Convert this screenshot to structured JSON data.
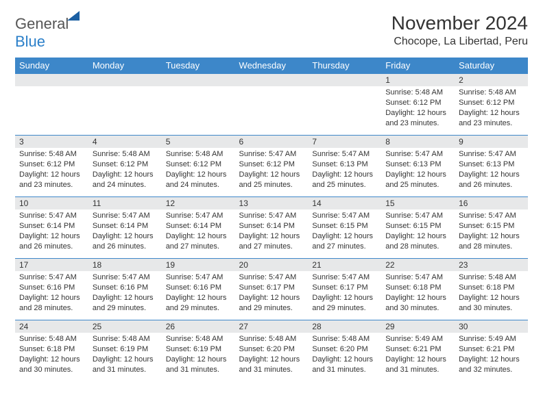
{
  "logo": {
    "general": "General",
    "blue": "Blue"
  },
  "title": "November 2024",
  "location": "Chocope, La Libertad, Peru",
  "colors": {
    "header_bg": "#3d87c9",
    "header_fg": "#ffffff",
    "daynum_bg": "#e7e8e9",
    "border": "#3d87c9",
    "text": "#333333"
  },
  "typography": {
    "title_fontsize": 28,
    "location_fontsize": 16,
    "header_fontsize": 13,
    "daynum_fontsize": 12,
    "body_fontsize": 11
  },
  "day_headers": [
    "Sunday",
    "Monday",
    "Tuesday",
    "Wednesday",
    "Thursday",
    "Friday",
    "Saturday"
  ],
  "weeks": [
    [
      {
        "num": "",
        "lines": []
      },
      {
        "num": "",
        "lines": []
      },
      {
        "num": "",
        "lines": []
      },
      {
        "num": "",
        "lines": []
      },
      {
        "num": "",
        "lines": []
      },
      {
        "num": "1",
        "lines": [
          "Sunrise: 5:48 AM",
          "Sunset: 6:12 PM",
          "Daylight: 12 hours and 23 minutes."
        ]
      },
      {
        "num": "2",
        "lines": [
          "Sunrise: 5:48 AM",
          "Sunset: 6:12 PM",
          "Daylight: 12 hours and 23 minutes."
        ]
      }
    ],
    [
      {
        "num": "3",
        "lines": [
          "Sunrise: 5:48 AM",
          "Sunset: 6:12 PM",
          "Daylight: 12 hours and 23 minutes."
        ]
      },
      {
        "num": "4",
        "lines": [
          "Sunrise: 5:48 AM",
          "Sunset: 6:12 PM",
          "Daylight: 12 hours and 24 minutes."
        ]
      },
      {
        "num": "5",
        "lines": [
          "Sunrise: 5:48 AM",
          "Sunset: 6:12 PM",
          "Daylight: 12 hours and 24 minutes."
        ]
      },
      {
        "num": "6",
        "lines": [
          "Sunrise: 5:47 AM",
          "Sunset: 6:12 PM",
          "Daylight: 12 hours and 25 minutes."
        ]
      },
      {
        "num": "7",
        "lines": [
          "Sunrise: 5:47 AM",
          "Sunset: 6:13 PM",
          "Daylight: 12 hours and 25 minutes."
        ]
      },
      {
        "num": "8",
        "lines": [
          "Sunrise: 5:47 AM",
          "Sunset: 6:13 PM",
          "Daylight: 12 hours and 25 minutes."
        ]
      },
      {
        "num": "9",
        "lines": [
          "Sunrise: 5:47 AM",
          "Sunset: 6:13 PM",
          "Daylight: 12 hours and 26 minutes."
        ]
      }
    ],
    [
      {
        "num": "10",
        "lines": [
          "Sunrise: 5:47 AM",
          "Sunset: 6:14 PM",
          "Daylight: 12 hours and 26 minutes."
        ]
      },
      {
        "num": "11",
        "lines": [
          "Sunrise: 5:47 AM",
          "Sunset: 6:14 PM",
          "Daylight: 12 hours and 26 minutes."
        ]
      },
      {
        "num": "12",
        "lines": [
          "Sunrise: 5:47 AM",
          "Sunset: 6:14 PM",
          "Daylight: 12 hours and 27 minutes."
        ]
      },
      {
        "num": "13",
        "lines": [
          "Sunrise: 5:47 AM",
          "Sunset: 6:14 PM",
          "Daylight: 12 hours and 27 minutes."
        ]
      },
      {
        "num": "14",
        "lines": [
          "Sunrise: 5:47 AM",
          "Sunset: 6:15 PM",
          "Daylight: 12 hours and 27 minutes."
        ]
      },
      {
        "num": "15",
        "lines": [
          "Sunrise: 5:47 AM",
          "Sunset: 6:15 PM",
          "Daylight: 12 hours and 28 minutes."
        ]
      },
      {
        "num": "16",
        "lines": [
          "Sunrise: 5:47 AM",
          "Sunset: 6:15 PM",
          "Daylight: 12 hours and 28 minutes."
        ]
      }
    ],
    [
      {
        "num": "17",
        "lines": [
          "Sunrise: 5:47 AM",
          "Sunset: 6:16 PM",
          "Daylight: 12 hours and 28 minutes."
        ]
      },
      {
        "num": "18",
        "lines": [
          "Sunrise: 5:47 AM",
          "Sunset: 6:16 PM",
          "Daylight: 12 hours and 29 minutes."
        ]
      },
      {
        "num": "19",
        "lines": [
          "Sunrise: 5:47 AM",
          "Sunset: 6:16 PM",
          "Daylight: 12 hours and 29 minutes."
        ]
      },
      {
        "num": "20",
        "lines": [
          "Sunrise: 5:47 AM",
          "Sunset: 6:17 PM",
          "Daylight: 12 hours and 29 minutes."
        ]
      },
      {
        "num": "21",
        "lines": [
          "Sunrise: 5:47 AM",
          "Sunset: 6:17 PM",
          "Daylight: 12 hours and 29 minutes."
        ]
      },
      {
        "num": "22",
        "lines": [
          "Sunrise: 5:47 AM",
          "Sunset: 6:18 PM",
          "Daylight: 12 hours and 30 minutes."
        ]
      },
      {
        "num": "23",
        "lines": [
          "Sunrise: 5:48 AM",
          "Sunset: 6:18 PM",
          "Daylight: 12 hours and 30 minutes."
        ]
      }
    ],
    [
      {
        "num": "24",
        "lines": [
          "Sunrise: 5:48 AM",
          "Sunset: 6:18 PM",
          "Daylight: 12 hours and 30 minutes."
        ]
      },
      {
        "num": "25",
        "lines": [
          "Sunrise: 5:48 AM",
          "Sunset: 6:19 PM",
          "Daylight: 12 hours and 31 minutes."
        ]
      },
      {
        "num": "26",
        "lines": [
          "Sunrise: 5:48 AM",
          "Sunset: 6:19 PM",
          "Daylight: 12 hours and 31 minutes."
        ]
      },
      {
        "num": "27",
        "lines": [
          "Sunrise: 5:48 AM",
          "Sunset: 6:20 PM",
          "Daylight: 12 hours and 31 minutes."
        ]
      },
      {
        "num": "28",
        "lines": [
          "Sunrise: 5:48 AM",
          "Sunset: 6:20 PM",
          "Daylight: 12 hours and 31 minutes."
        ]
      },
      {
        "num": "29",
        "lines": [
          "Sunrise: 5:49 AM",
          "Sunset: 6:21 PM",
          "Daylight: 12 hours and 31 minutes."
        ]
      },
      {
        "num": "30",
        "lines": [
          "Sunrise: 5:49 AM",
          "Sunset: 6:21 PM",
          "Daylight: 12 hours and 32 minutes."
        ]
      }
    ]
  ]
}
